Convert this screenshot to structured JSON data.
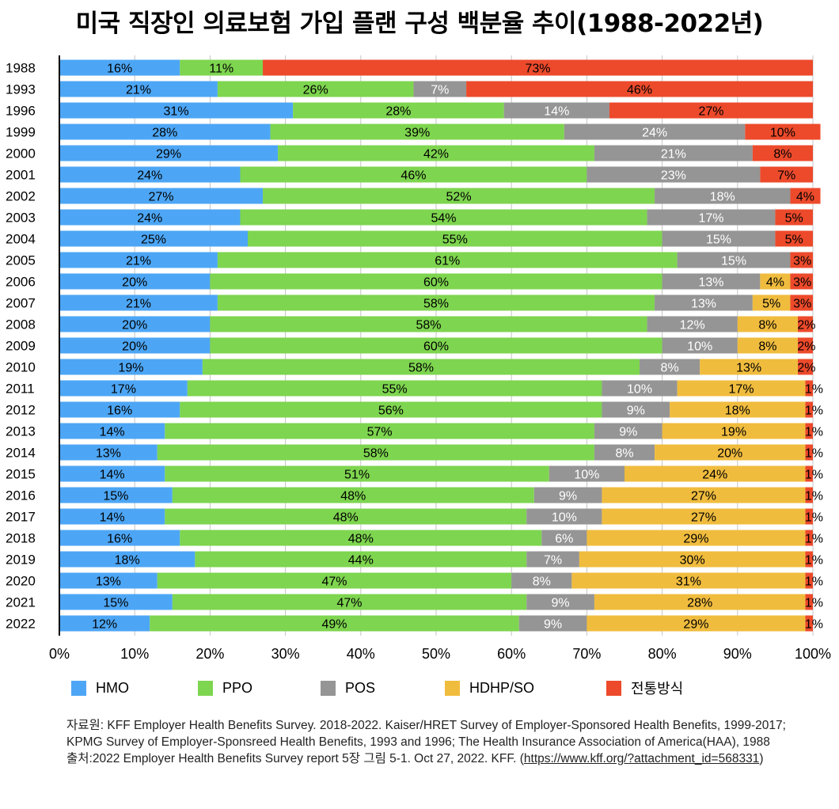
{
  "chart_data": {
    "type": "bar",
    "orientation": "horizontal",
    "stacked": true,
    "title": "미국 직장인 의료보험 가입 플랜 구성 백분율 추이(1988-2022년)",
    "categories": [
      "1988",
      "1993",
      "1996",
      "1999",
      "2000",
      "2001",
      "2002",
      "2003",
      "2004",
      "2005",
      "2006",
      "2007",
      "2008",
      "2009",
      "2010",
      "2011",
      "2012",
      "2013",
      "2014",
      "2015",
      "2016",
      "2017",
      "2018",
      "2019",
      "2020",
      "2021",
      "2022"
    ],
    "series": [
      {
        "name": "HMO",
        "color": "#4da6f5",
        "label_color": "#000000",
        "values": [
          16,
          21,
          31,
          28,
          29,
          24,
          27,
          24,
          25,
          21,
          20,
          21,
          20,
          20,
          19,
          17,
          16,
          14,
          13,
          14,
          15,
          14,
          16,
          18,
          13,
          15,
          12
        ]
      },
      {
        "name": "PPO",
        "color": "#7ed54f",
        "label_color": "#000000",
        "values": [
          11,
          26,
          28,
          39,
          42,
          46,
          52,
          54,
          55,
          61,
          60,
          58,
          58,
          60,
          58,
          55,
          56,
          57,
          58,
          51,
          48,
          48,
          48,
          44,
          47,
          47,
          49
        ]
      },
      {
        "name": "POS",
        "color": "#959595",
        "label_color": "#ffffff",
        "values": [
          0,
          7,
          14,
          24,
          21,
          23,
          18,
          17,
          15,
          15,
          13,
          13,
          12,
          10,
          8,
          10,
          9,
          9,
          8,
          10,
          9,
          10,
          6,
          7,
          8,
          9,
          9
        ]
      },
      {
        "name": "HDHP/SO",
        "color": "#f0bc3e",
        "label_color": "#000000",
        "values": [
          0,
          0,
          0,
          0,
          0,
          0,
          0,
          0,
          0,
          0,
          4,
          5,
          8,
          8,
          13,
          17,
          18,
          19,
          20,
          24,
          27,
          27,
          29,
          30,
          31,
          28,
          29
        ]
      },
      {
        "name": "전통방식",
        "color": "#ec4a2b",
        "label_color": "#000000",
        "values": [
          73,
          46,
          27,
          10,
          8,
          7,
          4,
          5,
          5,
          3,
          3,
          3,
          2,
          2,
          2,
          1,
          1,
          1,
          1,
          1,
          1,
          1,
          1,
          1,
          1,
          1,
          1
        ]
      }
    ],
    "xlim": [
      0,
      100
    ],
    "xticks": [
      "0%",
      "10%",
      "20%",
      "30%",
      "40%",
      "50%",
      "60%",
      "70%",
      "80%",
      "90%",
      "100%"
    ],
    "grid": true,
    "legend_position": "bottom"
  },
  "source": {
    "line1": "자료원: KFF Employer Health Benefits Survey. 2018-2022. Kaiser/HRET Survey of Employer-Sponsored Health Benefits, 1999-2017; KPMG Survey of Employer-Sponsreed Health Benefits, 1993 and 1996; The Health Insurance Association of America(HAA), 1988",
    "line2_prefix": "출처:2022 Employer Health Benefits Survey report 5장 그림 5-1. Oct 27, 2022. KFF. (",
    "link": "https://www.kff.org/?attachment_id=568331",
    "line2_suffix": ")"
  }
}
